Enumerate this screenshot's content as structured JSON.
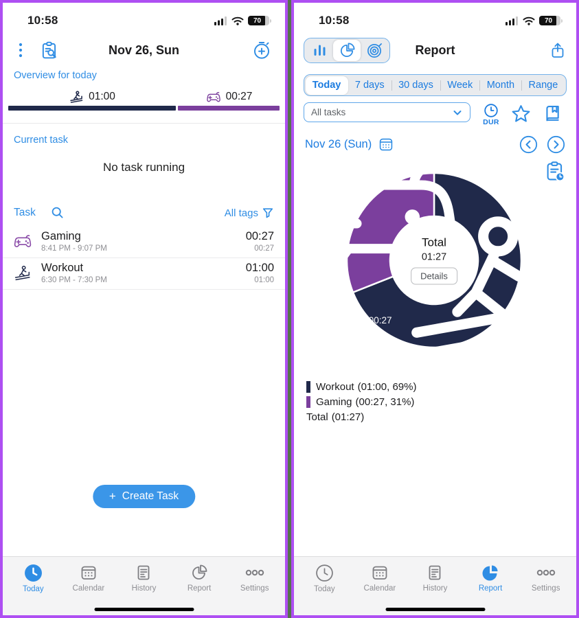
{
  "status_bar": {
    "time": "10:58",
    "battery_level": "70"
  },
  "tabs": {
    "items": [
      {
        "label": "Today",
        "icon": "clock-icon"
      },
      {
        "label": "Calendar",
        "icon": "calendar-icon"
      },
      {
        "label": "History",
        "icon": "history-icon"
      },
      {
        "label": "Report",
        "icon": "pie-icon"
      },
      {
        "label": "Settings",
        "icon": "ellipsis-icon"
      }
    ]
  },
  "colors": {
    "app_blue": "#2f8de4",
    "navy": "#20294a",
    "purple": "#7b3f9d",
    "frame_purple": "#ae4ff2",
    "frame_gap_green": "#56734f"
  },
  "left": {
    "nav_title": "Nov 26, Sun",
    "overview": {
      "label": "Overview for today",
      "segments": [
        {
          "task": "Workout",
          "time": "01:00",
          "pct": 69,
          "color": "#20294a"
        },
        {
          "task": "Gaming",
          "time": "00:27",
          "pct": 31,
          "color": "#7b3f9d"
        }
      ]
    },
    "current_task_label": "Current task",
    "current_task_status": "No task running",
    "task_header": {
      "label": "Task",
      "tags_label": "All tags"
    },
    "tasks": [
      {
        "name": "Gaming",
        "range": "8:41 PM - 9:07 PM",
        "duration": "00:27",
        "sub_duration": "00:27"
      },
      {
        "name": "Workout",
        "range": "6:30 PM - 7:30 PM",
        "duration": "01:00",
        "sub_duration": "01:00"
      }
    ],
    "create_task_plus": "+",
    "create_task_label": "Create Task"
  },
  "right": {
    "nav_title": "Report",
    "period_tabs": [
      {
        "label": "Today",
        "selected": true
      },
      {
        "label": "7 days"
      },
      {
        "label": "30 days"
      },
      {
        "label": "Week"
      },
      {
        "label": "Month"
      },
      {
        "label": "Range"
      }
    ],
    "task_filter_value": "All tasks",
    "dur_label": "DUR",
    "date_nav_date": "Nov 26 (Sun)",
    "donut_center": {
      "total_label": "Total",
      "total_value": "01:27",
      "details_label": "Details"
    },
    "legend": [
      {
        "name": "Workout",
        "detail": "(01:00, 69%)",
        "color": "#20294a"
      },
      {
        "name": "Gaming",
        "detail": "(00:27, 31%)",
        "color": "#7b3f9d"
      },
      {
        "name": "Total",
        "detail": "(01:27)"
      }
    ]
  },
  "chart_data": {
    "type": "pie",
    "title": "Report — Nov 26 (Sun)",
    "donut": true,
    "start_angle_deg": -90,
    "direction": "clockwise",
    "legend_position": "bottom-left",
    "series": [
      {
        "name": "Workout",
        "value_minutes": 60,
        "duration": "01:00",
        "pct": 69,
        "color": "#20294a",
        "label": "01:00"
      },
      {
        "name": "Gaming",
        "value_minutes": 27,
        "duration": "00:27",
        "pct": 31,
        "color": "#7b3f9d",
        "label": "00:27"
      }
    ],
    "total_minutes": 87,
    "total_duration": "01:27",
    "center_text": [
      "Total",
      "01:27"
    ]
  }
}
